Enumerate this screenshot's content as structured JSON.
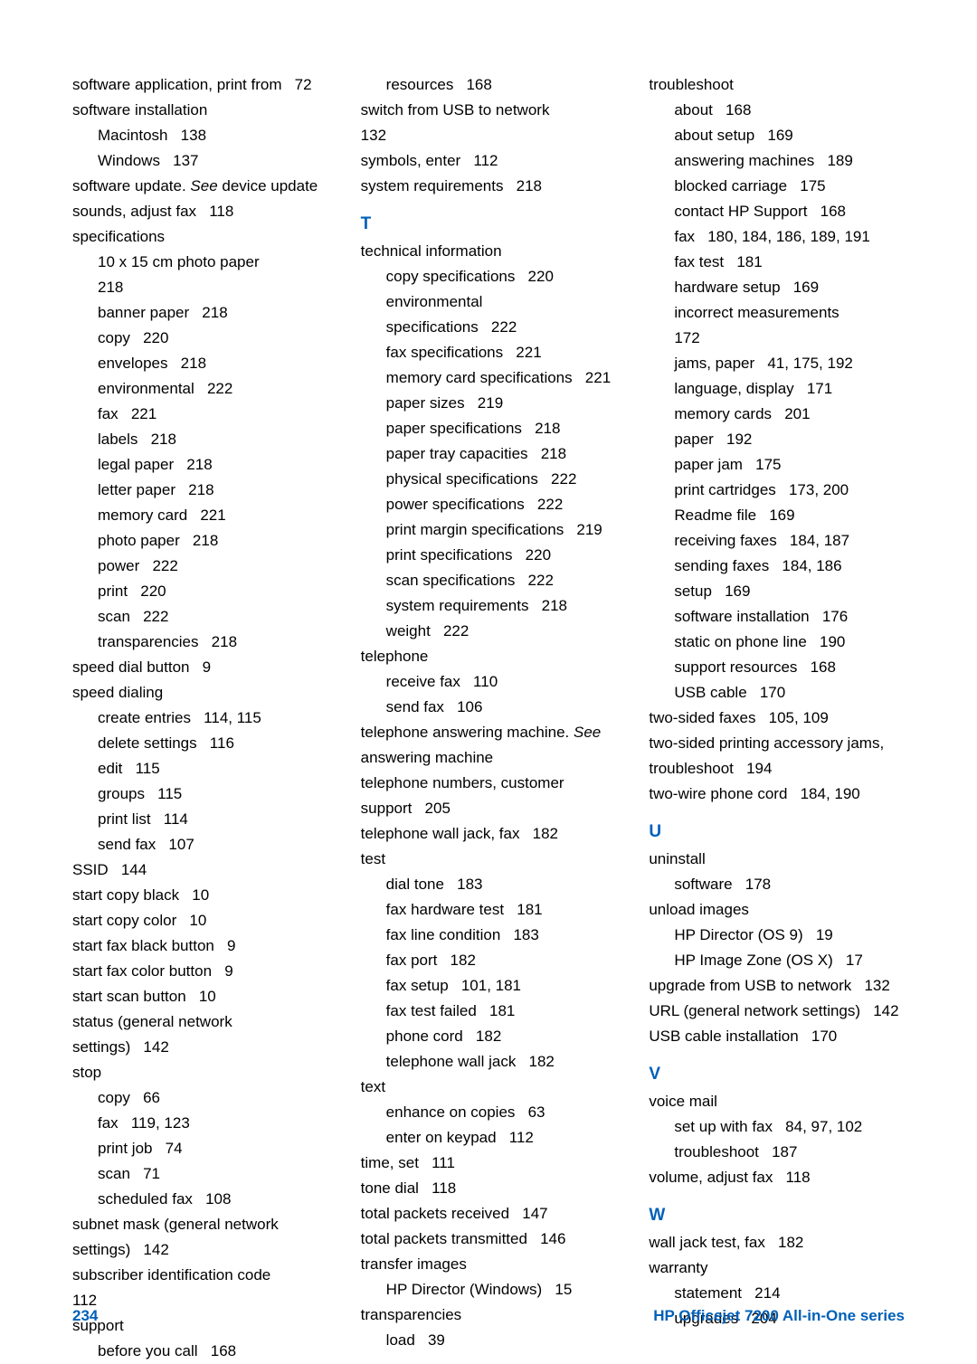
{
  "footer": {
    "page_number": "234",
    "product": "HP Officejet 7200 All-in-One series"
  },
  "colors": {
    "accent": "#0060b8",
    "text": "#000000",
    "background": "#ffffff"
  },
  "col1": [
    {
      "t": "software application, print from",
      "p": "72",
      "lvl": 0
    },
    {
      "t": "software installation",
      "p": "",
      "lvl": 0
    },
    {
      "t": "Macintosh",
      "p": "138",
      "lvl": 1
    },
    {
      "t": "Windows",
      "p": "137",
      "lvl": 1
    },
    {
      "t": "software update. See device update",
      "p": "",
      "lvl": 0,
      "italicSee": true
    },
    {
      "t": "sounds, adjust fax",
      "p": "118",
      "lvl": 0
    },
    {
      "t": "specifications",
      "p": "",
      "lvl": 0
    },
    {
      "t": "10 x 15 cm photo paper",
      "p": "218",
      "lvl": 1,
      "wrap": true
    },
    {
      "t": "banner paper",
      "p": "218",
      "lvl": 1
    },
    {
      "t": "copy",
      "p": "220",
      "lvl": 1
    },
    {
      "t": "envelopes",
      "p": "218",
      "lvl": 1
    },
    {
      "t": "environmental",
      "p": "222",
      "lvl": 1
    },
    {
      "t": "fax",
      "p": "221",
      "lvl": 1
    },
    {
      "t": "labels",
      "p": "218",
      "lvl": 1
    },
    {
      "t": "legal paper",
      "p": "218",
      "lvl": 1
    },
    {
      "t": "letter paper",
      "p": "218",
      "lvl": 1
    },
    {
      "t": "memory card",
      "p": "221",
      "lvl": 1
    },
    {
      "t": "photo paper",
      "p": "218",
      "lvl": 1
    },
    {
      "t": "power",
      "p": "222",
      "lvl": 1
    },
    {
      "t": "print",
      "p": "220",
      "lvl": 1
    },
    {
      "t": "scan",
      "p": "222",
      "lvl": 1
    },
    {
      "t": "transparencies",
      "p": "218",
      "lvl": 1
    },
    {
      "t": "speed dial button",
      "p": "9",
      "lvl": 0
    },
    {
      "t": "speed dialing",
      "p": "",
      "lvl": 0
    },
    {
      "t": "create entries",
      "p": "114, 115",
      "lvl": 1
    },
    {
      "t": "delete settings",
      "p": "116",
      "lvl": 1
    },
    {
      "t": "edit",
      "p": "115",
      "lvl": 1
    },
    {
      "t": "groups",
      "p": "115",
      "lvl": 1
    },
    {
      "t": "print list",
      "p": "114",
      "lvl": 1
    },
    {
      "t": "send fax",
      "p": "107",
      "lvl": 1
    },
    {
      "t": "SSID",
      "p": "144",
      "lvl": 0
    },
    {
      "t": "start copy black",
      "p": "10",
      "lvl": 0
    },
    {
      "t": "start copy color",
      "p": "10",
      "lvl": 0
    },
    {
      "t": "start fax black button",
      "p": "9",
      "lvl": 0
    },
    {
      "t": "start fax color button",
      "p": "9",
      "lvl": 0
    },
    {
      "t": "start scan button",
      "p": "10",
      "lvl": 0
    },
    {
      "t": "status (general network settings)",
      "p": "142",
      "lvl": 0
    },
    {
      "t": "stop",
      "p": "",
      "lvl": 0
    },
    {
      "t": "copy",
      "p": "66",
      "lvl": 1
    },
    {
      "t": "fax",
      "p": "119, 123",
      "lvl": 1
    },
    {
      "t": "print job",
      "p": "74",
      "lvl": 1
    },
    {
      "t": "scan",
      "p": "71",
      "lvl": 1
    },
    {
      "t": "scheduled fax",
      "p": "108",
      "lvl": 1
    },
    {
      "t": "subnet mask (general network settings)",
      "p": "142",
      "lvl": 0
    },
    {
      "t": "subscriber identification code",
      "p": "112",
      "lvl": 0,
      "wrap": true
    },
    {
      "t": "support",
      "p": "",
      "lvl": 0
    },
    {
      "t": "before you call",
      "p": "168",
      "lvl": 1
    }
  ],
  "col2": [
    {
      "t": "resources",
      "p": "168",
      "lvl": 1
    },
    {
      "t": "switch from USB to network",
      "p": "132",
      "lvl": 0,
      "wrap": true
    },
    {
      "t": "symbols, enter",
      "p": "112",
      "lvl": 0
    },
    {
      "t": "system requirements",
      "p": "218",
      "lvl": 0
    },
    {
      "section": "T"
    },
    {
      "t": "technical information",
      "p": "",
      "lvl": 0
    },
    {
      "t": "copy specifications",
      "p": "220",
      "lvl": 1
    },
    {
      "t": "environmental specifications",
      "p": "222",
      "lvl": 1
    },
    {
      "t": "fax specifications",
      "p": "221",
      "lvl": 1
    },
    {
      "t": "memory card specifications",
      "p": "221",
      "lvl": 1
    },
    {
      "t": "paper sizes",
      "p": "219",
      "lvl": 1
    },
    {
      "t": "paper specifications",
      "p": "218",
      "lvl": 1
    },
    {
      "t": "paper tray capacities",
      "p": "218",
      "lvl": 1
    },
    {
      "t": "physical specifications",
      "p": "222",
      "lvl": 1
    },
    {
      "t": "power specifications",
      "p": "222",
      "lvl": 1
    },
    {
      "t": "print margin specifications",
      "p": "219",
      "lvl": 1
    },
    {
      "t": "print specifications",
      "p": "220",
      "lvl": 1
    },
    {
      "t": "scan specifications",
      "p": "222",
      "lvl": 1
    },
    {
      "t": "system requirements",
      "p": "218",
      "lvl": 1
    },
    {
      "t": "weight",
      "p": "222",
      "lvl": 1
    },
    {
      "t": "telephone",
      "p": "",
      "lvl": 0
    },
    {
      "t": "receive fax",
      "p": "110",
      "lvl": 1
    },
    {
      "t": "send fax",
      "p": "106",
      "lvl": 1
    },
    {
      "t": "telephone answering machine. See answering machine",
      "p": "",
      "lvl": 0,
      "italicSee": true
    },
    {
      "t": "telephone numbers, customer support",
      "p": "205",
      "lvl": 0
    },
    {
      "t": "telephone wall jack, fax",
      "p": "182",
      "lvl": 0
    },
    {
      "t": "test",
      "p": "",
      "lvl": 0
    },
    {
      "t": "dial tone",
      "p": "183",
      "lvl": 1
    },
    {
      "t": "fax hardware test",
      "p": "181",
      "lvl": 1
    },
    {
      "t": "fax line condition",
      "p": "183",
      "lvl": 1
    },
    {
      "t": "fax port",
      "p": "182",
      "lvl": 1
    },
    {
      "t": "fax setup",
      "p": "101, 181",
      "lvl": 1
    },
    {
      "t": "fax test failed",
      "p": "181",
      "lvl": 1
    },
    {
      "t": "phone cord",
      "p": "182",
      "lvl": 1
    },
    {
      "t": "telephone wall jack",
      "p": "182",
      "lvl": 1
    },
    {
      "t": "text",
      "p": "",
      "lvl": 0
    },
    {
      "t": "enhance on copies",
      "p": "63",
      "lvl": 1
    },
    {
      "t": "enter on keypad",
      "p": "112",
      "lvl": 1
    },
    {
      "t": "time, set",
      "p": "111",
      "lvl": 0
    },
    {
      "t": "tone dial",
      "p": "118",
      "lvl": 0
    },
    {
      "t": "total packets received",
      "p": "147",
      "lvl": 0
    },
    {
      "t": "total packets transmitted",
      "p": "146",
      "lvl": 0
    },
    {
      "t": "transfer images",
      "p": "",
      "lvl": 0
    },
    {
      "t": "HP Director (Windows)",
      "p": "15",
      "lvl": 1
    },
    {
      "t": "transparencies",
      "p": "",
      "lvl": 0
    },
    {
      "t": "load",
      "p": "39",
      "lvl": 1
    }
  ],
  "col3": [
    {
      "t": "troubleshoot",
      "p": "",
      "lvl": 0
    },
    {
      "t": "about",
      "p": "168",
      "lvl": 1
    },
    {
      "t": "about setup",
      "p": "169",
      "lvl": 1
    },
    {
      "t": "answering machines",
      "p": "189",
      "lvl": 1
    },
    {
      "t": "blocked carriage",
      "p": "175",
      "lvl": 1
    },
    {
      "t": "contact HP Support",
      "p": "168",
      "lvl": 1
    },
    {
      "t": "fax",
      "p": "180, 184, 186, 189, 191",
      "lvl": 1
    },
    {
      "t": "fax test",
      "p": "181",
      "lvl": 1
    },
    {
      "t": "hardware setup",
      "p": "169",
      "lvl": 1
    },
    {
      "t": "incorrect measurements",
      "p": "172",
      "lvl": 1,
      "wrap": true
    },
    {
      "t": "jams, paper",
      "p": "41, 175, 192",
      "lvl": 1
    },
    {
      "t": "language, display",
      "p": "171",
      "lvl": 1
    },
    {
      "t": "memory cards",
      "p": "201",
      "lvl": 1
    },
    {
      "t": "paper",
      "p": "192",
      "lvl": 1
    },
    {
      "t": "paper jam",
      "p": "175",
      "lvl": 1
    },
    {
      "t": "print cartridges",
      "p": "173, 200",
      "lvl": 1
    },
    {
      "t": "Readme file",
      "p": "169",
      "lvl": 1
    },
    {
      "t": "receiving faxes",
      "p": "184, 187",
      "lvl": 1
    },
    {
      "t": "sending faxes",
      "p": "184, 186",
      "lvl": 1
    },
    {
      "t": "setup",
      "p": "169",
      "lvl": 1
    },
    {
      "t": "software installation",
      "p": "176",
      "lvl": 1
    },
    {
      "t": "static on phone line",
      "p": "190",
      "lvl": 1
    },
    {
      "t": "support resources",
      "p": "168",
      "lvl": 1
    },
    {
      "t": "USB cable",
      "p": "170",
      "lvl": 1
    },
    {
      "t": "two-sided faxes",
      "p": "105, 109",
      "lvl": 0
    },
    {
      "t": "two-sided printing accessory jams, troubleshoot",
      "p": "194",
      "lvl": 0
    },
    {
      "t": "two-wire phone cord",
      "p": "184, 190",
      "lvl": 0
    },
    {
      "section": "U"
    },
    {
      "t": "uninstall",
      "p": "",
      "lvl": 0
    },
    {
      "t": "software",
      "p": "178",
      "lvl": 1
    },
    {
      "t": "unload images",
      "p": "",
      "lvl": 0
    },
    {
      "t": "HP Director (OS 9)",
      "p": "19",
      "lvl": 1
    },
    {
      "t": "HP Image Zone (OS X)",
      "p": "17",
      "lvl": 1
    },
    {
      "t": "upgrade from USB to network",
      "p": "132",
      "lvl": 0
    },
    {
      "t": "URL (general network settings)",
      "p": "142",
      "lvl": 0
    },
    {
      "t": "USB cable installation",
      "p": "170",
      "lvl": 0
    },
    {
      "section": "V"
    },
    {
      "t": "voice mail",
      "p": "",
      "lvl": 0
    },
    {
      "t": "set up with fax",
      "p": "84, 97, 102",
      "lvl": 1
    },
    {
      "t": "troubleshoot",
      "p": "187",
      "lvl": 1
    },
    {
      "t": "volume, adjust fax",
      "p": "118",
      "lvl": 0
    },
    {
      "section": "W"
    },
    {
      "t": "wall jack test, fax",
      "p": "182",
      "lvl": 0
    },
    {
      "t": "warranty",
      "p": "",
      "lvl": 0
    },
    {
      "t": "statement",
      "p": "214",
      "lvl": 1
    },
    {
      "t": "upgrades",
      "p": "204",
      "lvl": 1
    }
  ]
}
